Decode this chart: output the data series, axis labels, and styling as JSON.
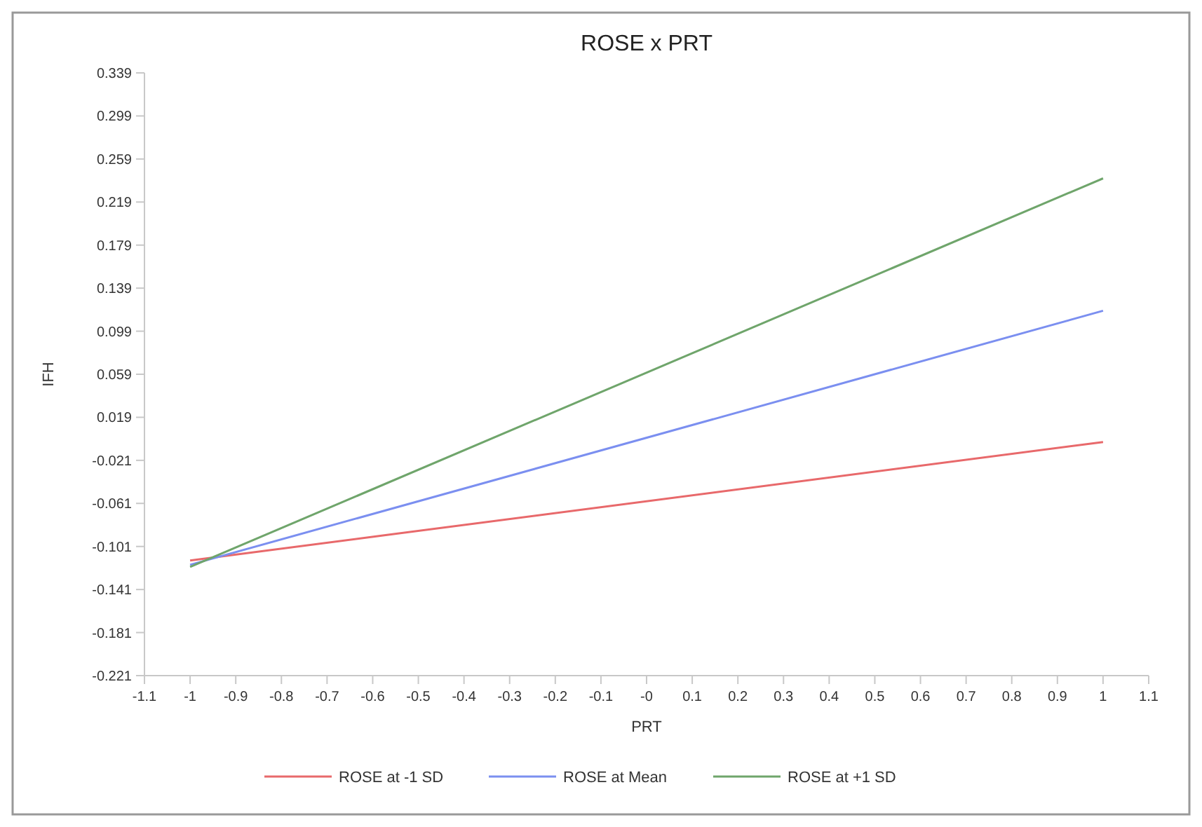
{
  "chart_data": {
    "type": "line",
    "title": "ROSE x PRT",
    "xlabel": "PRT",
    "ylabel": "IFH",
    "x": [
      -1,
      1
    ],
    "series": [
      {
        "name": "ROSE at -1 SD",
        "color": "#e8696b",
        "values": [
          -0.114,
          -0.004
        ]
      },
      {
        "name": "ROSE at Mean",
        "color": "#7b8ff0",
        "values": [
          -0.118,
          0.118
        ]
      },
      {
        "name": "ROSE at +1 SD",
        "color": "#6fa56b",
        "values": [
          -0.12,
          0.241
        ]
      }
    ],
    "xlim": [
      -1.1,
      1.1
    ],
    "xticks": [
      -1.1,
      -1,
      -0.9,
      -0.8,
      -0.7,
      -0.6,
      -0.5,
      -0.4,
      -0.3,
      -0.2,
      -0.1,
      {
        "value": 0,
        "label": "-0"
      },
      0.1,
      0.2,
      0.3,
      0.4,
      0.5,
      0.6,
      0.7,
      0.8,
      0.9,
      1,
      1.1
    ],
    "ylim": [
      -0.221,
      0.339
    ],
    "yticks": [
      -0.221,
      -0.181,
      -0.141,
      -0.101,
      -0.061,
      -0.021,
      0.019,
      0.059,
      0.099,
      0.139,
      0.179,
      0.219,
      0.259,
      0.299,
      0.339
    ],
    "grid": false,
    "legend": "bottom",
    "marker": "none",
    "line_style": "solid"
  }
}
